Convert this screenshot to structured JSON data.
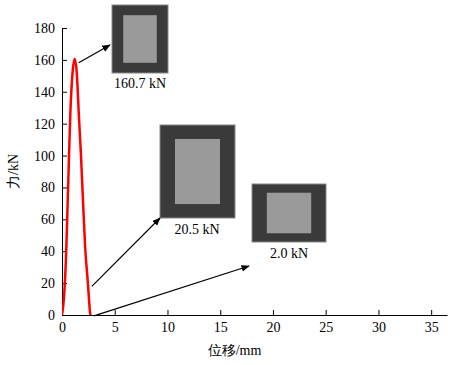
{
  "chart_data": {
    "type": "line",
    "x_label": "位移/mm",
    "y_label": "力/kN",
    "x": [
      0,
      0.2,
      0.4,
      0.6,
      0.8,
      1.0,
      1.2,
      1.4,
      1.6,
      1.8,
      2.0,
      2.2,
      2.45,
      2.6,
      2.65,
      2.7
    ],
    "values": [
      0,
      12,
      40,
      85,
      128,
      152,
      160.7,
      152,
      125,
      100,
      70,
      42,
      20.5,
      6,
      2.0,
      0
    ],
    "color": "#ff0000",
    "xlim": [
      0,
      36.5
    ],
    "xticks": [
      0,
      5,
      10,
      15,
      20,
      25,
      30,
      35
    ],
    "ylim": [
      0,
      180
    ],
    "yticks": [
      0,
      20,
      40,
      60,
      80,
      100,
      120,
      140,
      160,
      180
    ],
    "grid": false,
    "annotations": [
      {
        "text": "160.7 kN",
        "x": 1.2,
        "y": 160.7
      },
      {
        "text": "20.5 kN",
        "x": 2.45,
        "y": 20.5
      },
      {
        "text": "2.0 kN",
        "x": 2.65,
        "y": 2.0
      }
    ]
  }
}
